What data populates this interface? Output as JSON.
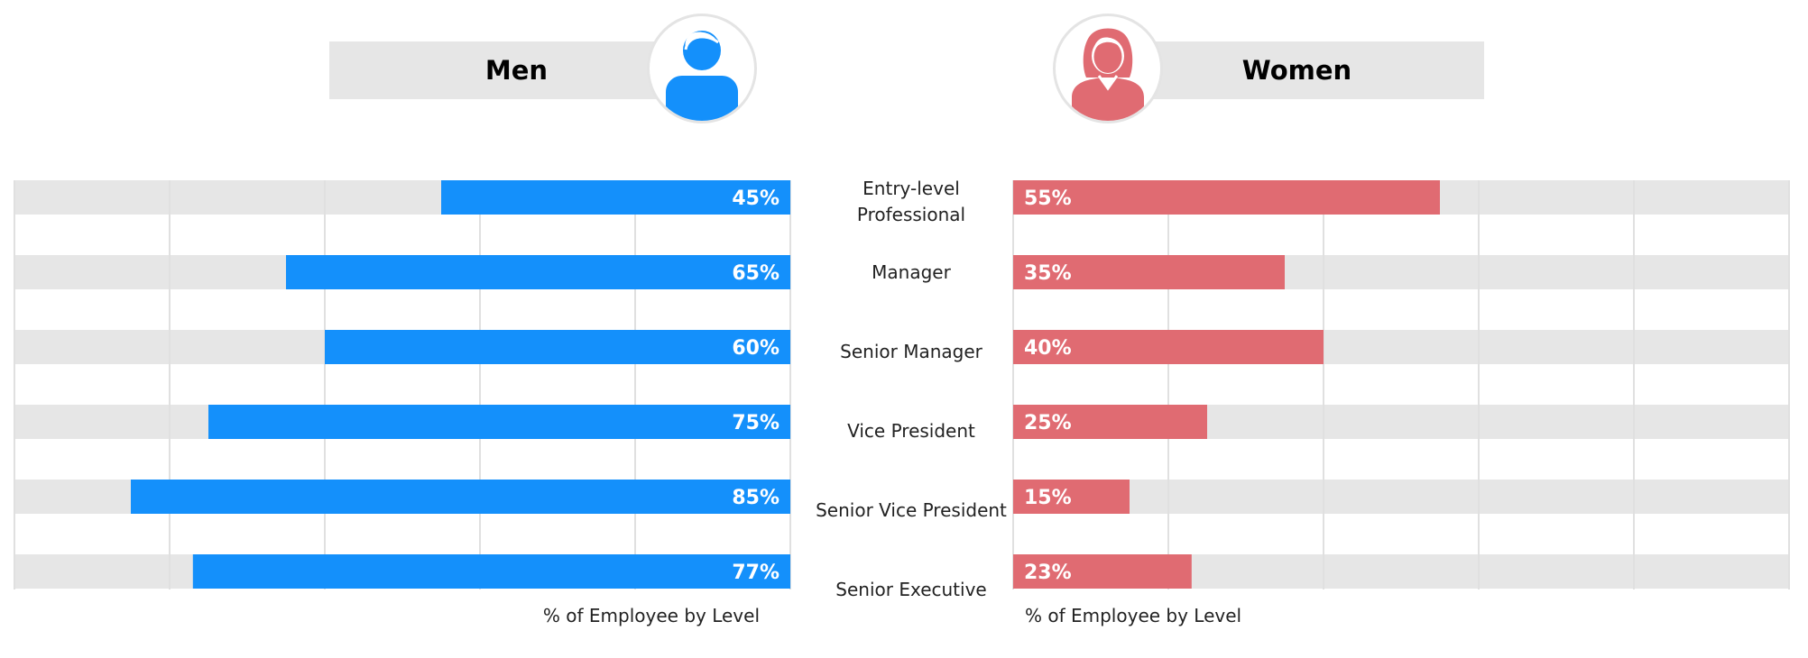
{
  "panels": {
    "left": {
      "title": "Men",
      "icon": "man-icon",
      "color": "#1490fb"
    },
    "right": {
      "title": "Women",
      "icon": "woman-icon",
      "color": "#e06b72"
    }
  },
  "colors": {
    "track": "#e6e6e6",
    "grid": "#e0e0e0",
    "label_on_bar": "#ffffff"
  },
  "chart_data": [
    {
      "type": "bar",
      "orientation": "horizontal",
      "direction": "right-to-left",
      "series": [
        {
          "name": "Men",
          "values": [
            45,
            65,
            60,
            75,
            85,
            77
          ]
        }
      ],
      "categories": [
        "Entry-level Professional",
        "Manager",
        "Senior Manager",
        "Vice President",
        "Senior Vice President",
        "Senior Executive"
      ],
      "data_labels": [
        "45%",
        "65%",
        "60%",
        "75%",
        "85%",
        "77%"
      ],
      "xlabel": "% of Employee by Level",
      "xlim": [
        0,
        100
      ],
      "grid": true
    },
    {
      "type": "bar",
      "orientation": "horizontal",
      "direction": "left-to-right",
      "series": [
        {
          "name": "Women",
          "values": [
            55,
            35,
            40,
            25,
            15,
            23
          ]
        }
      ],
      "categories": [
        "Entry-level Professional",
        "Manager",
        "Senior Manager",
        "Vice President",
        "Senior Vice President",
        "Senior Executive"
      ],
      "data_labels": [
        "55%",
        "35%",
        "40%",
        "25%",
        "15%",
        "23%"
      ],
      "xlabel": "% of Employee by Level",
      "xlim": [
        0,
        100
      ],
      "grid": true
    }
  ],
  "category_labels": [
    [
      "Entry-level",
      "Professional"
    ],
    [
      "Manager"
    ],
    [
      "Senior Manager"
    ],
    [
      "Vice President"
    ],
    [
      "Senior Vice President"
    ],
    [
      "Senior Executive"
    ]
  ]
}
